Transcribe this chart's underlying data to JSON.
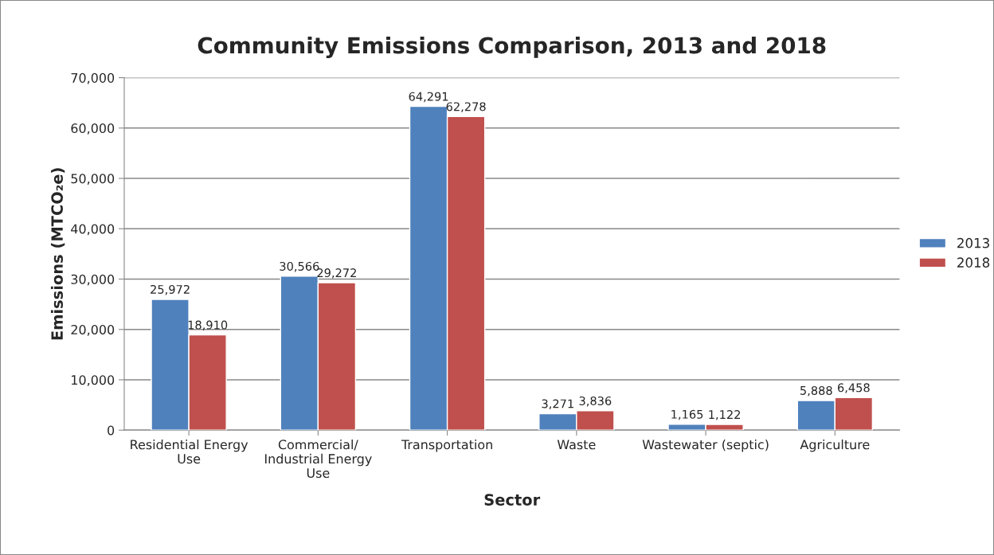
{
  "chart_data": {
    "type": "bar",
    "title": "Community Emissions Comparison, 2013 and 2018",
    "xlabel": "Sector",
    "ylabel": "Emissions (MTCO₂e)",
    "categories": [
      "Residential Energy Use",
      "Commercial/ Industrial Energy Use",
      "Transportation",
      "Waste",
      "Wastewater (septic)",
      "Agriculture"
    ],
    "series": [
      {
        "name": "2013",
        "color": "#4f81bd",
        "values": [
          25972,
          30566,
          64291,
          3271,
          1165,
          5888
        ],
        "value_labels": [
          "25,972",
          "30,566",
          "64,291",
          "3,271",
          "1,165",
          "5,888"
        ]
      },
      {
        "name": "2018",
        "color": "#c0504d",
        "values": [
          18910,
          29272,
          62278,
          3836,
          1122,
          6458
        ],
        "value_labels": [
          "18,910",
          "29,272",
          "62,278",
          "3,836",
          "1,122",
          "6,458"
        ]
      }
    ],
    "ylim": [
      0,
      70000
    ],
    "yticks": [
      {
        "value": 0,
        "label": "0"
      },
      {
        "value": 10000,
        "label": "10,000"
      },
      {
        "value": 20000,
        "label": "20,000"
      },
      {
        "value": 30000,
        "label": "30,000"
      },
      {
        "value": 40000,
        "label": "40,000"
      },
      {
        "value": 50000,
        "label": "50,000"
      },
      {
        "value": 60000,
        "label": "60,000"
      },
      {
        "value": 70000,
        "label": "70,000"
      }
    ],
    "grid": "y",
    "legend": "right"
  }
}
